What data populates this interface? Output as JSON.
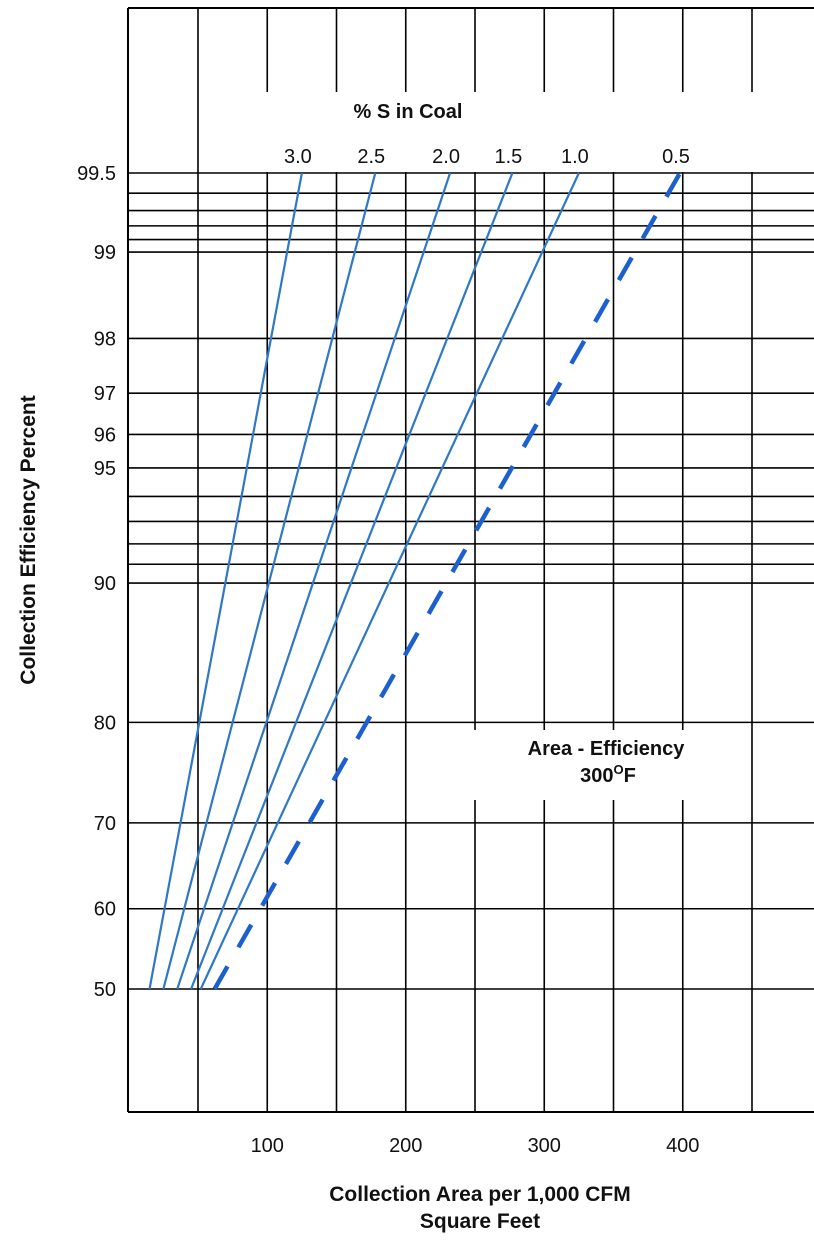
{
  "chart_data": {
    "type": "line",
    "y_scale": "probability",
    "ylabel": "Collection Efficiency Percent",
    "xlabel_line1": "Collection Area per 1,000 CFM",
    "xlabel_line2": "Square Feet",
    "legend_title": "% S in Coal",
    "annotation_line1": "Area - Efficiency",
    "annotation_line2": "300",
    "annotation_sup": "O",
    "annotation_unit": "F",
    "xlim": [
      -50,
      450
    ],
    "x_ticks": [
      100,
      200,
      300,
      400
    ],
    "x_gridlines": [
      0,
      50,
      100,
      150,
      200,
      250,
      300,
      350,
      400,
      450
    ],
    "y_ticks": [
      50,
      60,
      70,
      80,
      90,
      95,
      96,
      97,
      98,
      99,
      99.5
    ],
    "y_gridlines": [
      50,
      60,
      70,
      80,
      90,
      91,
      92,
      93,
      94,
      95,
      96,
      97,
      98,
      99,
      99.1,
      99.2,
      99.3,
      99.4,
      99.5
    ],
    "series": [
      {
        "name": "3.0",
        "dashed": false,
        "x": [
          15,
          125
        ],
        "y": [
          50,
          99.5
        ]
      },
      {
        "name": "2.5",
        "dashed": false,
        "x": [
          25,
          178
        ],
        "y": [
          50,
          99.5
        ]
      },
      {
        "name": "2.0",
        "dashed": false,
        "x": [
          35,
          232
        ],
        "y": [
          50,
          99.5
        ]
      },
      {
        "name": "1.5",
        "dashed": false,
        "x": [
          45,
          277
        ],
        "y": [
          50,
          99.5
        ]
      },
      {
        "name": "1.0",
        "dashed": false,
        "x": [
          52,
          325
        ],
        "y": [
          50,
          99.5
        ]
      },
      {
        "name": "0.5",
        "dashed": true,
        "x": [
          62,
          398
        ],
        "y": [
          50,
          99.5
        ]
      }
    ],
    "line_color": "#2e78c6",
    "dashed_color": "#1c5fcf",
    "grid_color": "#000000"
  }
}
